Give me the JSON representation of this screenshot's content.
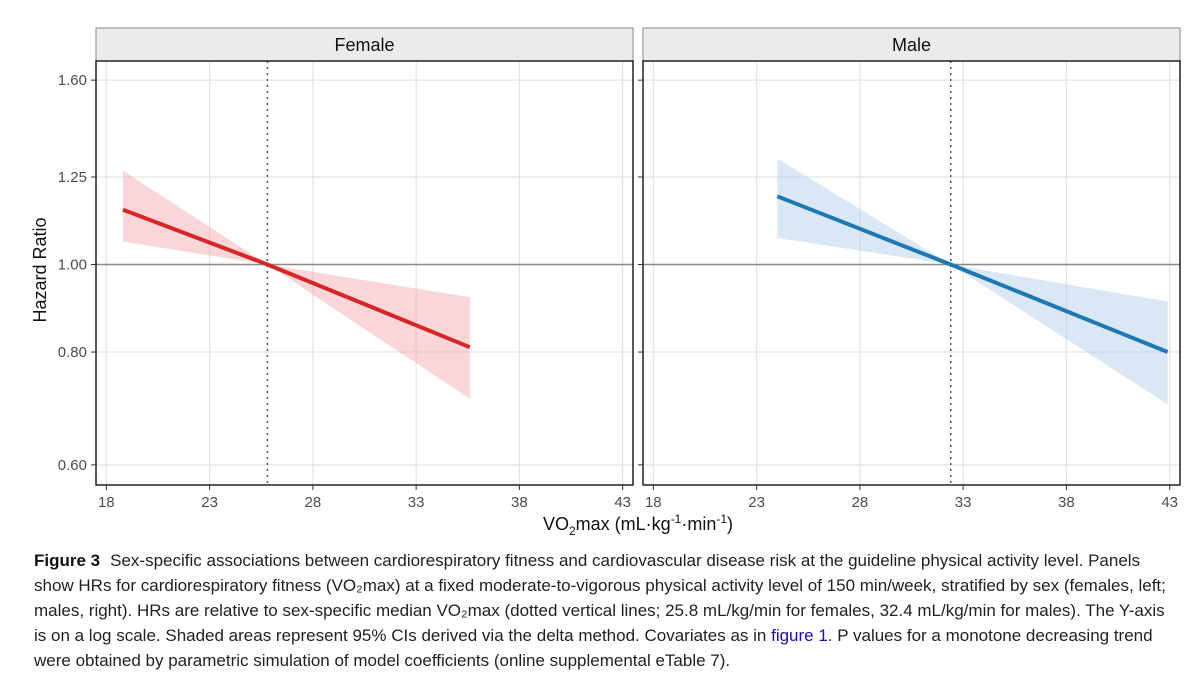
{
  "chart_data": [
    {
      "type": "line",
      "panel": "Female",
      "x_scale": "linear",
      "y_scale": "log",
      "xlim": [
        17.5,
        43.5
      ],
      "ylim": [
        0.57,
        1.68
      ],
      "xticks": [
        18,
        23,
        28,
        33,
        38,
        43
      ],
      "yticks": [
        0.6,
        0.8,
        1.0,
        1.25,
        1.6
      ],
      "ytick_labels": [
        "0.60",
        "0.80",
        "1.00",
        "1.25",
        "1.60"
      ],
      "grid": true,
      "reference_hline": 1.0,
      "reference_vline": 25.8,
      "color": "#d62728",
      "band_color": "#f4a5a8",
      "series": [
        {
          "x": [
            18.8,
            25.8,
            35.6
          ],
          "y": [
            1.15,
            1.0,
            0.81
          ],
          "ci_lower": [
            1.06,
            1.0,
            0.71
          ],
          "ci_upper": [
            1.27,
            1.0,
            0.92
          ]
        }
      ]
    },
    {
      "type": "line",
      "panel": "Male",
      "x_scale": "linear",
      "y_scale": "log",
      "xlim": [
        17.5,
        43.5
      ],
      "ylim": [
        0.57,
        1.68
      ],
      "xticks": [
        18,
        23,
        28,
        33,
        38,
        43
      ],
      "yticks": [
        0.6,
        0.8,
        1.0,
        1.25,
        1.6
      ],
      "ytick_labels": [
        "0.60",
        "0.80",
        "1.00",
        "1.25",
        "1.60"
      ],
      "grid": true,
      "reference_hline": 1.0,
      "reference_vline": 32.4,
      "color": "#1f77b4",
      "band_color": "#aecde8",
      "series": [
        {
          "x": [
            24.0,
            32.4,
            42.9
          ],
          "y": [
            1.19,
            1.0,
            0.8
          ],
          "ci_lower": [
            1.07,
            1.0,
            0.7
          ],
          "ci_upper": [
            1.31,
            1.0,
            0.91
          ]
        }
      ]
    }
  ],
  "axes": {
    "ylabel": "Hazard Ratio",
    "xlabel_main": "VO",
    "xlabel_sub": "2",
    "xlabel_max": "max (mL·kg",
    "xlabel_sup1": "-1",
    "xlabel_mid": "·min",
    "xlabel_sup2": "-1",
    "xlabel_end": ")"
  },
  "caption": {
    "label": "Figure 3",
    "text_before_link": "Sex-specific associations between cardiorespiratory fitness and cardiovascular disease risk at the guideline physical activity level. Panels show HRs for cardiorespiratory fitness (VO₂max) at a fixed moderate-to-vigorous physical activity level of 150 min/week, stratified by sex (females, left; males, right). HRs are relative to sex-specific median VO₂max (dotted vertical lines; 25.8 mL/kg/min for females, 32.4 mL/kg/min for males). The Y-axis is on a log scale. Shaded areas represent 95% CIs derived via the delta method. Covariates as in ",
    "link_text": "figure 1",
    "text_after_link": ". P values for a monotone decreasing trend were obtained by parametric simulation of model coefficients (online supplemental eTable 7)."
  }
}
